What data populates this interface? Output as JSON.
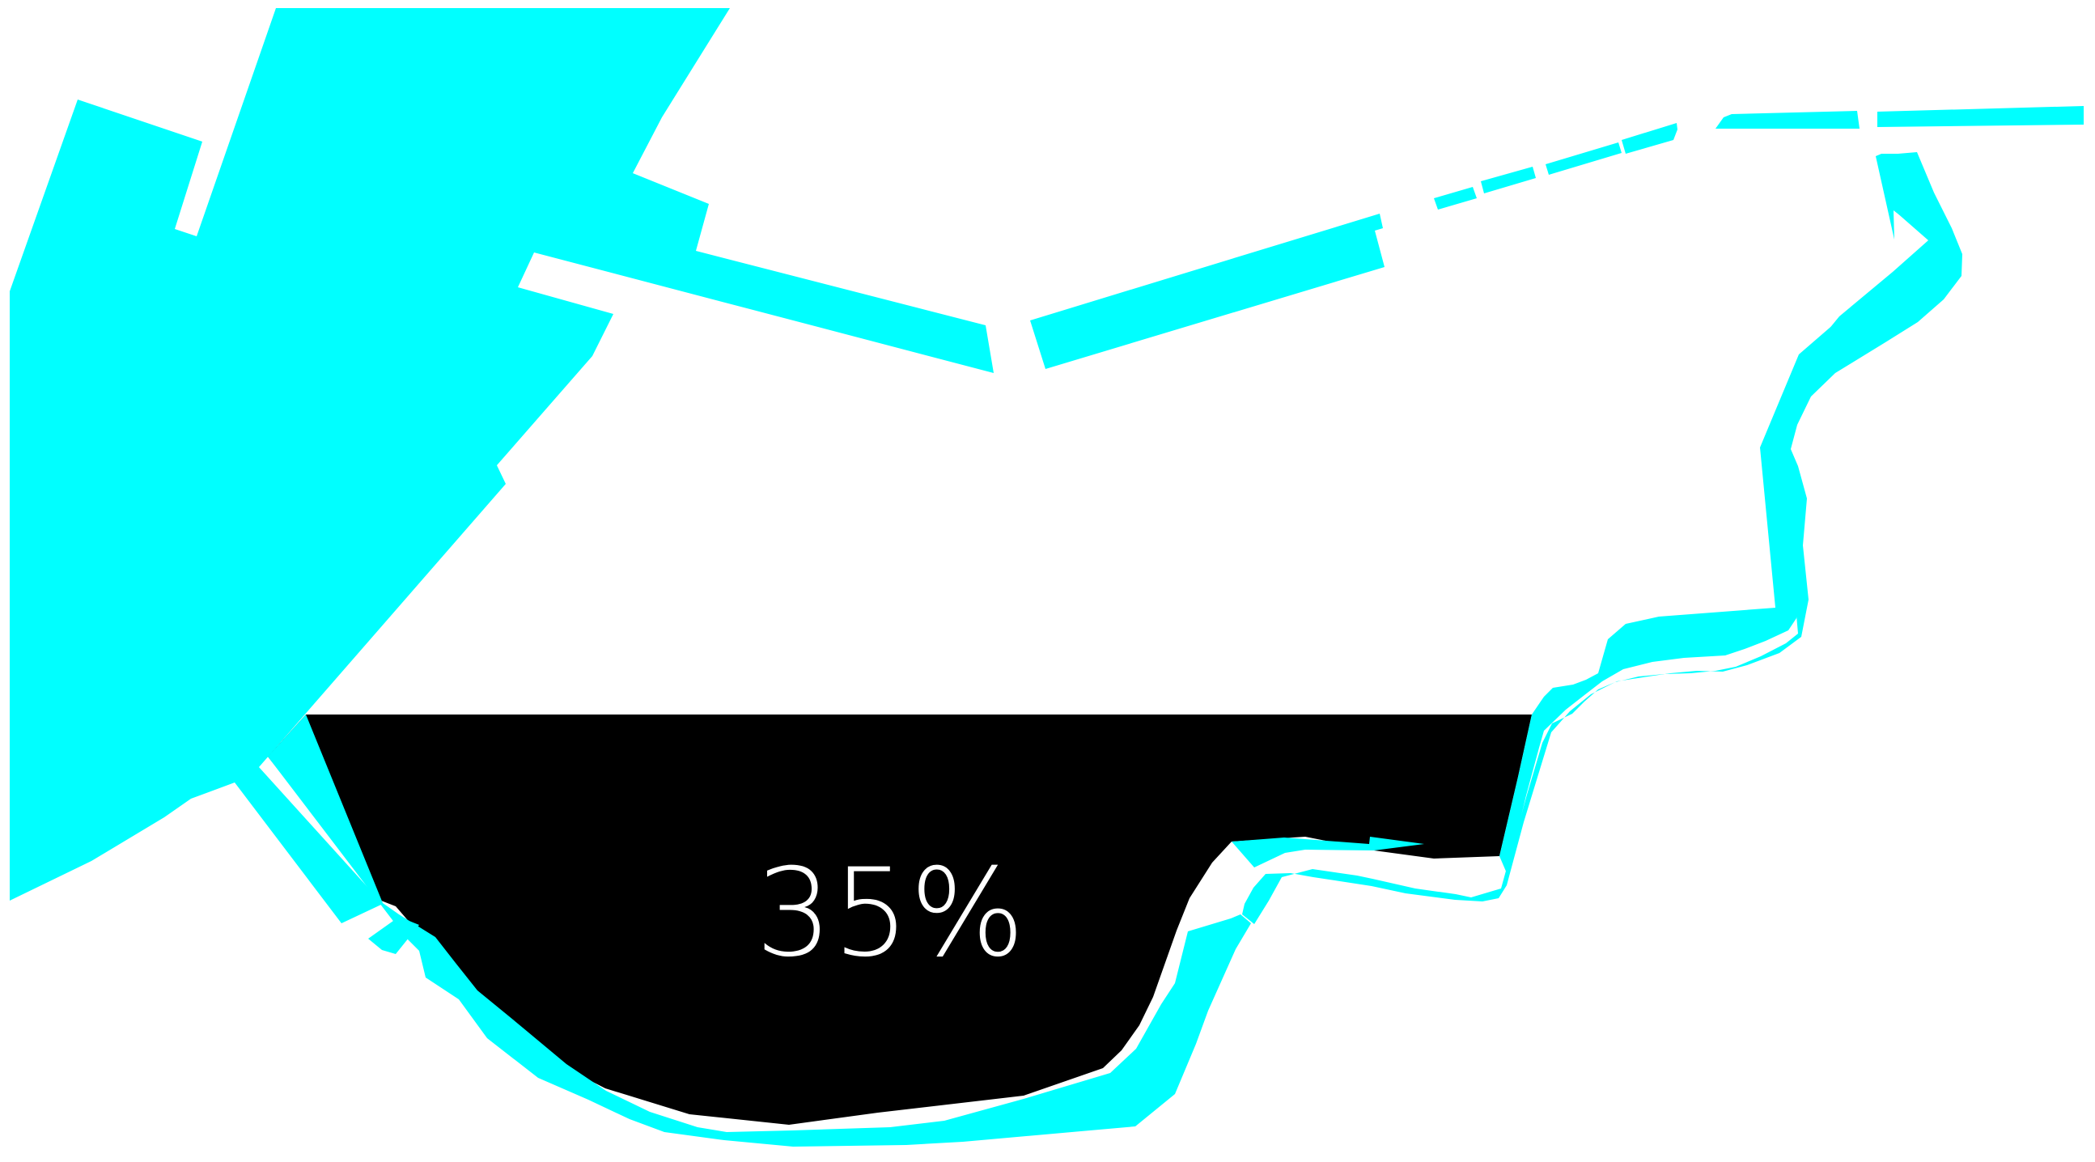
{
  "colors": {
    "background": "#ffffff",
    "outline": "#00ffff",
    "fill_level": "#000000",
    "label_text": "#ffffff"
  },
  "fill": {
    "percent": 35,
    "label": "35%"
  }
}
